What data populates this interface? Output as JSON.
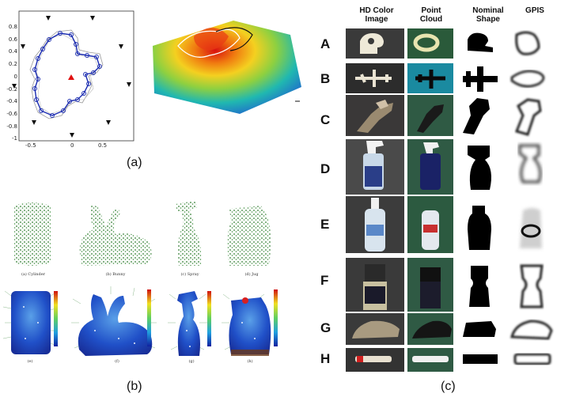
{
  "panel_a": {
    "caption": "(a)",
    "y_ticks": [
      "0.8",
      "0.6",
      "0.4",
      "0.2",
      "0",
      "-0.2",
      "-0.4",
      "-0.6",
      "-0.8",
      "-1"
    ],
    "x_ticks": [
      "-0.5",
      "0",
      "0.5"
    ]
  },
  "panel_b": {
    "caption": "(b)",
    "labels": [
      "(a) Cylinder",
      "(b) Bunny",
      "(c) Spray",
      "(d) Jug"
    ],
    "sub_labels": [
      "(e)",
      "(f)",
      "(g)",
      "(h)"
    ],
    "colorbar_ticks": [
      "0.000",
      "0.005",
      "0.010",
      "0.015",
      "0.020",
      "0.025",
      "0.030",
      "0.035"
    ]
  },
  "panel_c": {
    "caption": "(c)",
    "columns": [
      "HD Color\nImage",
      "Point\nCloud",
      "Nominal\nShape",
      "GPIS"
    ],
    "rows": [
      "A",
      "B",
      "C",
      "D",
      "E",
      "F",
      "G",
      "H"
    ]
  }
}
